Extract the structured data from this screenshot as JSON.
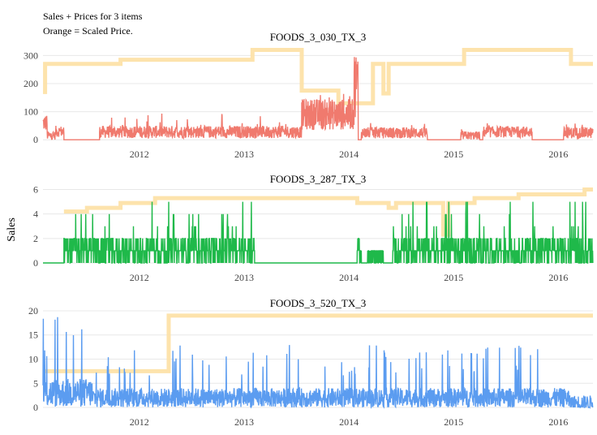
{
  "annotation": {
    "line1": "Sales + Prices for 3 items",
    "line2": "Orange = Scaled Price."
  },
  "shared_ylabel": "Sales",
  "colors": {
    "price": "#fde2a8",
    "grid": "#e8e8e8"
  },
  "chart_data": [
    {
      "type": "line",
      "title": "FOODS_3_030_TX_3",
      "xlim": [
        2011.08,
        2016.33
      ],
      "ylim": [
        -8,
        330
      ],
      "xticks": [
        2012,
        2013,
        2014,
        2015,
        2016
      ],
      "yticks": [
        0,
        100,
        200,
        300
      ],
      "series": [
        {
          "role": "sales",
          "color": "#f07a6e",
          "segments": [
            {
              "x0": 2011.08,
              "x1": 2011.12,
              "base": 60,
              "amp": 30,
              "spike": 90
            },
            {
              "x0": 2011.12,
              "x1": 2011.2,
              "base": 15,
              "amp": 15,
              "spike": 35
            },
            {
              "x0": 2011.2,
              "x1": 2011.28,
              "base": 30,
              "amp": 20,
              "spike": 55
            },
            {
              "x0": 2011.28,
              "x1": 2011.62,
              "base": 0,
              "amp": 0,
              "spike": 0
            },
            {
              "x0": 2011.62,
              "x1": 2013.55,
              "base": 28,
              "amp": 22,
              "spike": 95
            },
            {
              "x0": 2013.55,
              "x1": 2014.05,
              "base": 90,
              "amp": 55,
              "spike": 190
            },
            {
              "x0": 2014.05,
              "x1": 2014.09,
              "base": 200,
              "amp": 120,
              "spike": 315
            },
            {
              "x0": 2014.09,
              "x1": 2014.12,
              "base": 0,
              "amp": 0,
              "spike": 0
            },
            {
              "x0": 2014.12,
              "x1": 2014.75,
              "base": 25,
              "amp": 20,
              "spike": 60
            },
            {
              "x0": 2014.75,
              "x1": 2015.07,
              "base": 0,
              "amp": 0,
              "spike": 0
            },
            {
              "x0": 2015.07,
              "x1": 2015.25,
              "base": 15,
              "amp": 15,
              "spike": 40
            },
            {
              "x0": 2015.25,
              "x1": 2015.28,
              "base": 0,
              "amp": 0,
              "spike": 0
            },
            {
              "x0": 2015.28,
              "x1": 2015.75,
              "base": 28,
              "amp": 20,
              "spike": 60
            },
            {
              "x0": 2015.75,
              "x1": 2016.05,
              "base": 0,
              "amp": 0,
              "spike": 0
            },
            {
              "x0": 2016.05,
              "x1": 2016.33,
              "base": 25,
              "amp": 20,
              "spike": 60
            }
          ]
        },
        {
          "role": "scaled_price",
          "color": "#fde2a8",
          "steps": [
            [
              2011.08,
              170
            ],
            [
              2011.1,
              270
            ],
            [
              2011.82,
              285
            ],
            [
              2013.08,
              320
            ],
            [
              2013.55,
              175
            ],
            [
              2013.9,
              130
            ],
            [
              2014.23,
              270
            ],
            [
              2014.33,
              165
            ],
            [
              2014.38,
              270
            ],
            [
              2015.1,
              320
            ],
            [
              2016.12,
              270
            ],
            [
              2016.33,
              270
            ]
          ]
        }
      ]
    },
    {
      "type": "line",
      "title": "FOODS_3_287_TX_3",
      "xlim": [
        2011.08,
        2016.33
      ],
      "ylim": [
        -0.2,
        6.3
      ],
      "xticks": [
        2012,
        2013,
        2014,
        2015,
        2016
      ],
      "yticks": [
        0,
        2,
        4,
        6
      ],
      "series": [
        {
          "role": "sales",
          "color": "#1fb94a",
          "segments": [
            {
              "x0": 2011.08,
              "x1": 2011.28,
              "base": 0,
              "amp": 0,
              "spike": 0
            },
            {
              "x0": 2011.28,
              "x1": 2013.1,
              "base": 1,
              "amp": 1,
              "spike": 5
            },
            {
              "x0": 2013.1,
              "x1": 2014.08,
              "base": 0,
              "amp": 0,
              "spike": 0
            },
            {
              "x0": 2014.08,
              "x1": 2014.12,
              "base": 1,
              "amp": 1,
              "spike": 4
            },
            {
              "x0": 2014.12,
              "x1": 2014.18,
              "base": 0,
              "amp": 0,
              "spike": 0
            },
            {
              "x0": 2014.18,
              "x1": 2014.33,
              "base": 0.5,
              "amp": 1,
              "spike": 1
            },
            {
              "x0": 2014.33,
              "x1": 2014.42,
              "base": 0,
              "amp": 0,
              "spike": 0
            },
            {
              "x0": 2014.42,
              "x1": 2016.33,
              "base": 1,
              "amp": 1,
              "spike": 5
            }
          ]
        },
        {
          "role": "scaled_price",
          "color": "#fde2a8",
          "steps": [
            [
              2011.28,
              4.2
            ],
            [
              2011.5,
              4.5
            ],
            [
              2011.82,
              4.9
            ],
            [
              2012.15,
              5.3
            ],
            [
              2014.08,
              4.9
            ],
            [
              2014.38,
              4.5
            ],
            [
              2014.45,
              4.9
            ],
            [
              2014.9,
              2.3
            ],
            [
              2014.95,
              4.9
            ],
            [
              2015.2,
              5.3
            ],
            [
              2015.62,
              5.6
            ],
            [
              2016.25,
              6.0
            ],
            [
              2016.33,
              6.0
            ]
          ]
        }
      ]
    },
    {
      "type": "line",
      "title": "FOODS_3_520_TX_3",
      "xlim": [
        2011.08,
        2016.33
      ],
      "ylim": [
        -0.5,
        20.5
      ],
      "xticks": [
        2012,
        2013,
        2014,
        2015,
        2016
      ],
      "yticks": [
        0,
        5,
        10,
        15,
        20
      ],
      "series": [
        {
          "role": "sales",
          "color": "#5b9cf0",
          "segments": [
            {
              "x0": 2011.08,
              "x1": 2011.55,
              "base": 3,
              "amp": 3,
              "spike": 19
            },
            {
              "x0": 2011.55,
              "x1": 2016.1,
              "base": 2,
              "amp": 2,
              "spike": 13
            },
            {
              "x0": 2016.1,
              "x1": 2016.33,
              "base": 1,
              "amp": 1.5,
              "spike": 5
            }
          ]
        },
        {
          "role": "scaled_price",
          "color": "#fde2a8",
          "steps": [
            [
              2011.08,
              7.5
            ],
            [
              2012.28,
              19
            ],
            [
              2016.33,
              19
            ]
          ]
        }
      ]
    }
  ]
}
